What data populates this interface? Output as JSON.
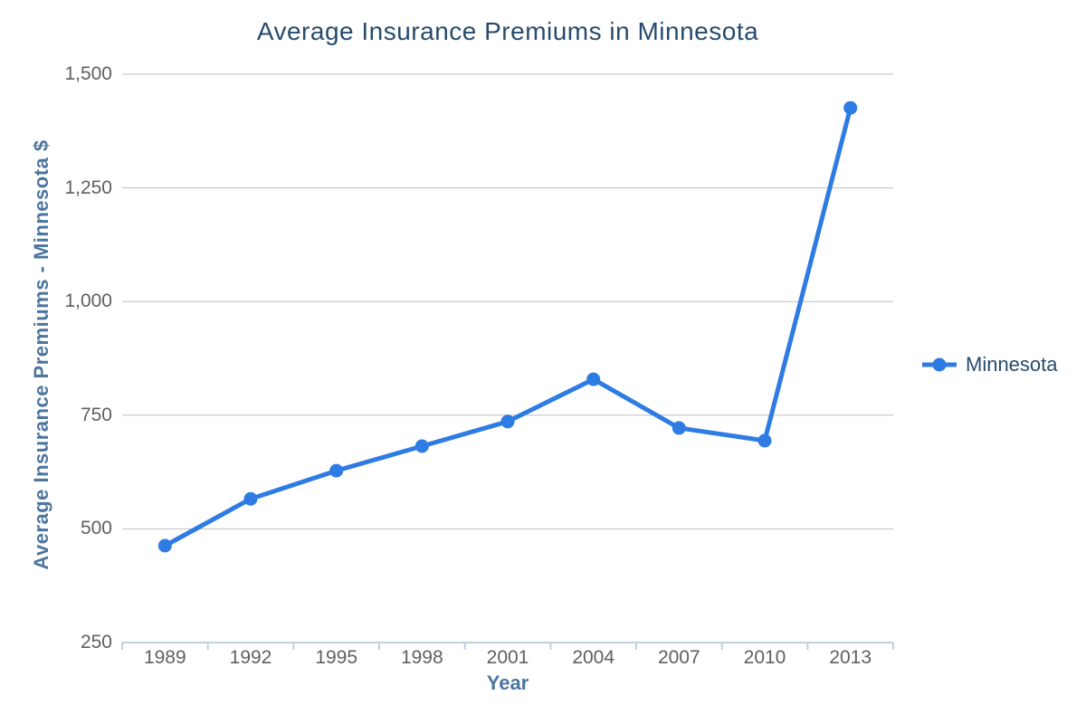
{
  "chart_data": {
    "type": "line",
    "title": "Average Insurance Premiums in Minnesota",
    "xlabel": "Year",
    "ylabel": "Average Insurance Premiums - Minnesota $",
    "categories": [
      "1989",
      "1992",
      "1995",
      "1998",
      "2001",
      "2004",
      "2007",
      "2010",
      "2013"
    ],
    "series": [
      {
        "name": "Minnesota",
        "values": [
          463,
          566,
          628,
          682,
          736,
          829,
          722,
          694,
          1426
        ]
      }
    ],
    "ylim": [
      250,
      1500
    ],
    "yticks": [
      250,
      500,
      750,
      1000,
      1250,
      1500
    ],
    "ytick_labels": [
      "250",
      "500",
      "750",
      "1,000",
      "1,250",
      "1,500"
    ],
    "grid": true,
    "legend_position": "right",
    "colors": {
      "series": "#2e7ce3",
      "title": "#274b6d",
      "axis_title": "#4d759e",
      "tick_label": "#606060",
      "gridline": "#c0c0c0",
      "axis_line": "#c0d0e0",
      "legend_text": "#274b6d",
      "background": "#ffffff"
    }
  }
}
